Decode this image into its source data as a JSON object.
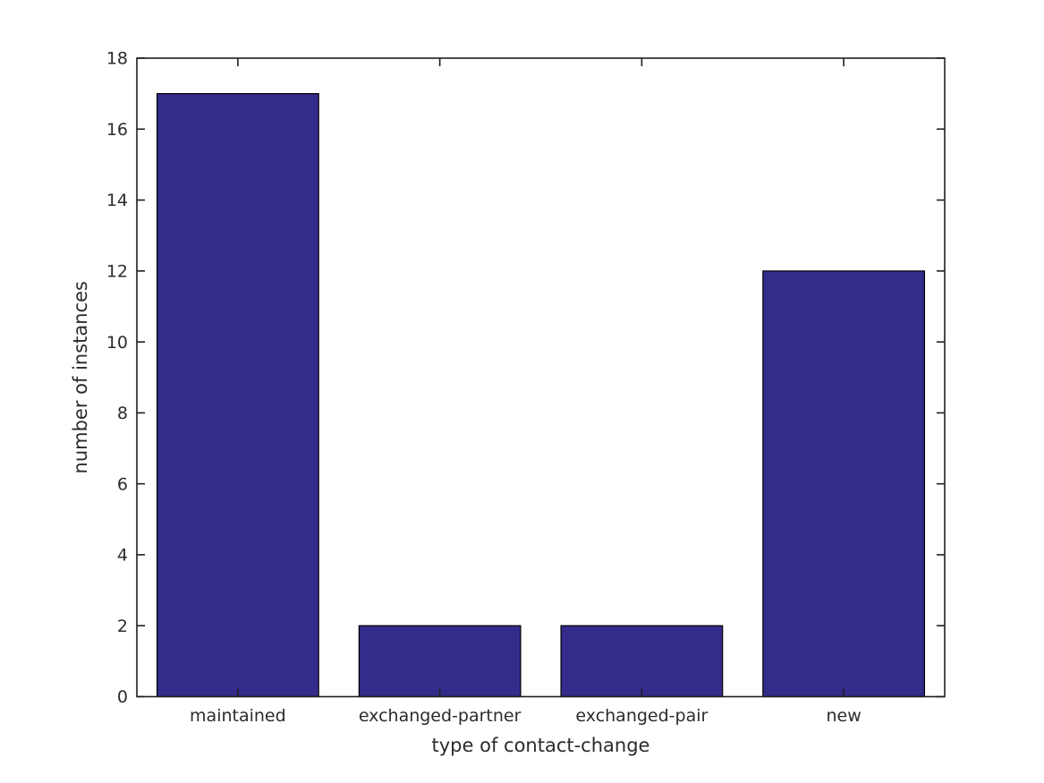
{
  "chart_data": {
    "type": "bar",
    "categories": [
      "maintained",
      "exchanged-partner",
      "exchanged-pair",
      "new"
    ],
    "values": [
      17,
      2,
      2,
      12
    ],
    "title": "",
    "xlabel": "type of contact-change",
    "ylabel": "number of instances",
    "ylim": [
      0,
      18
    ],
    "yticks": [
      0,
      2,
      4,
      6,
      8,
      10,
      12,
      14,
      16,
      18
    ],
    "bar_width_fraction": 0.8,
    "bar_color": "#342c8b",
    "bar_edge_color": "#000000",
    "axis_color": "#1f1f1f",
    "text_color": "#2b2b2b",
    "background_color": "#ffffff",
    "grid": false,
    "legend": null,
    "tick_direction": "in",
    "box": true
  }
}
